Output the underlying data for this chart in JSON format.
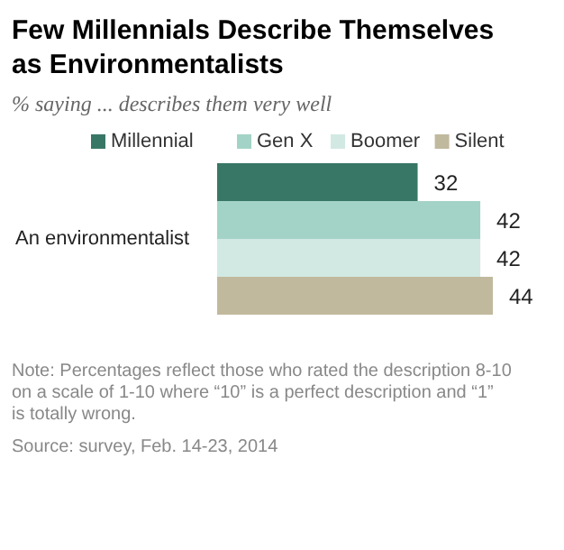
{
  "chart_data": {
    "type": "bar",
    "orientation": "horizontal",
    "title": "Few Millennials Describe Themselves as Environmentalists",
    "subtitle": "% saying ... describes them very well",
    "categories": [
      "An environmentalist"
    ],
    "series": [
      {
        "name": "Millennial",
        "color": "#387766",
        "values": [
          32
        ]
      },
      {
        "name": "Gen X",
        "color": "#a3d3c6",
        "values": [
          42
        ]
      },
      {
        "name": "Boomer",
        "color": "#d2e9e3",
        "values": [
          42
        ]
      },
      {
        "name": "Silent",
        "color": "#c1b99e",
        "values": [
          44
        ]
      }
    ],
    "data_labels": true,
    "legend": "top",
    "annotations": [
      "Note: Percentages reflect those who rated the description 8-10 on a scale of 1-10 where “10” is a perfect description and “1” is totally wrong.",
      "Source: survey, Feb. 14-23, 2014"
    ]
  }
}
